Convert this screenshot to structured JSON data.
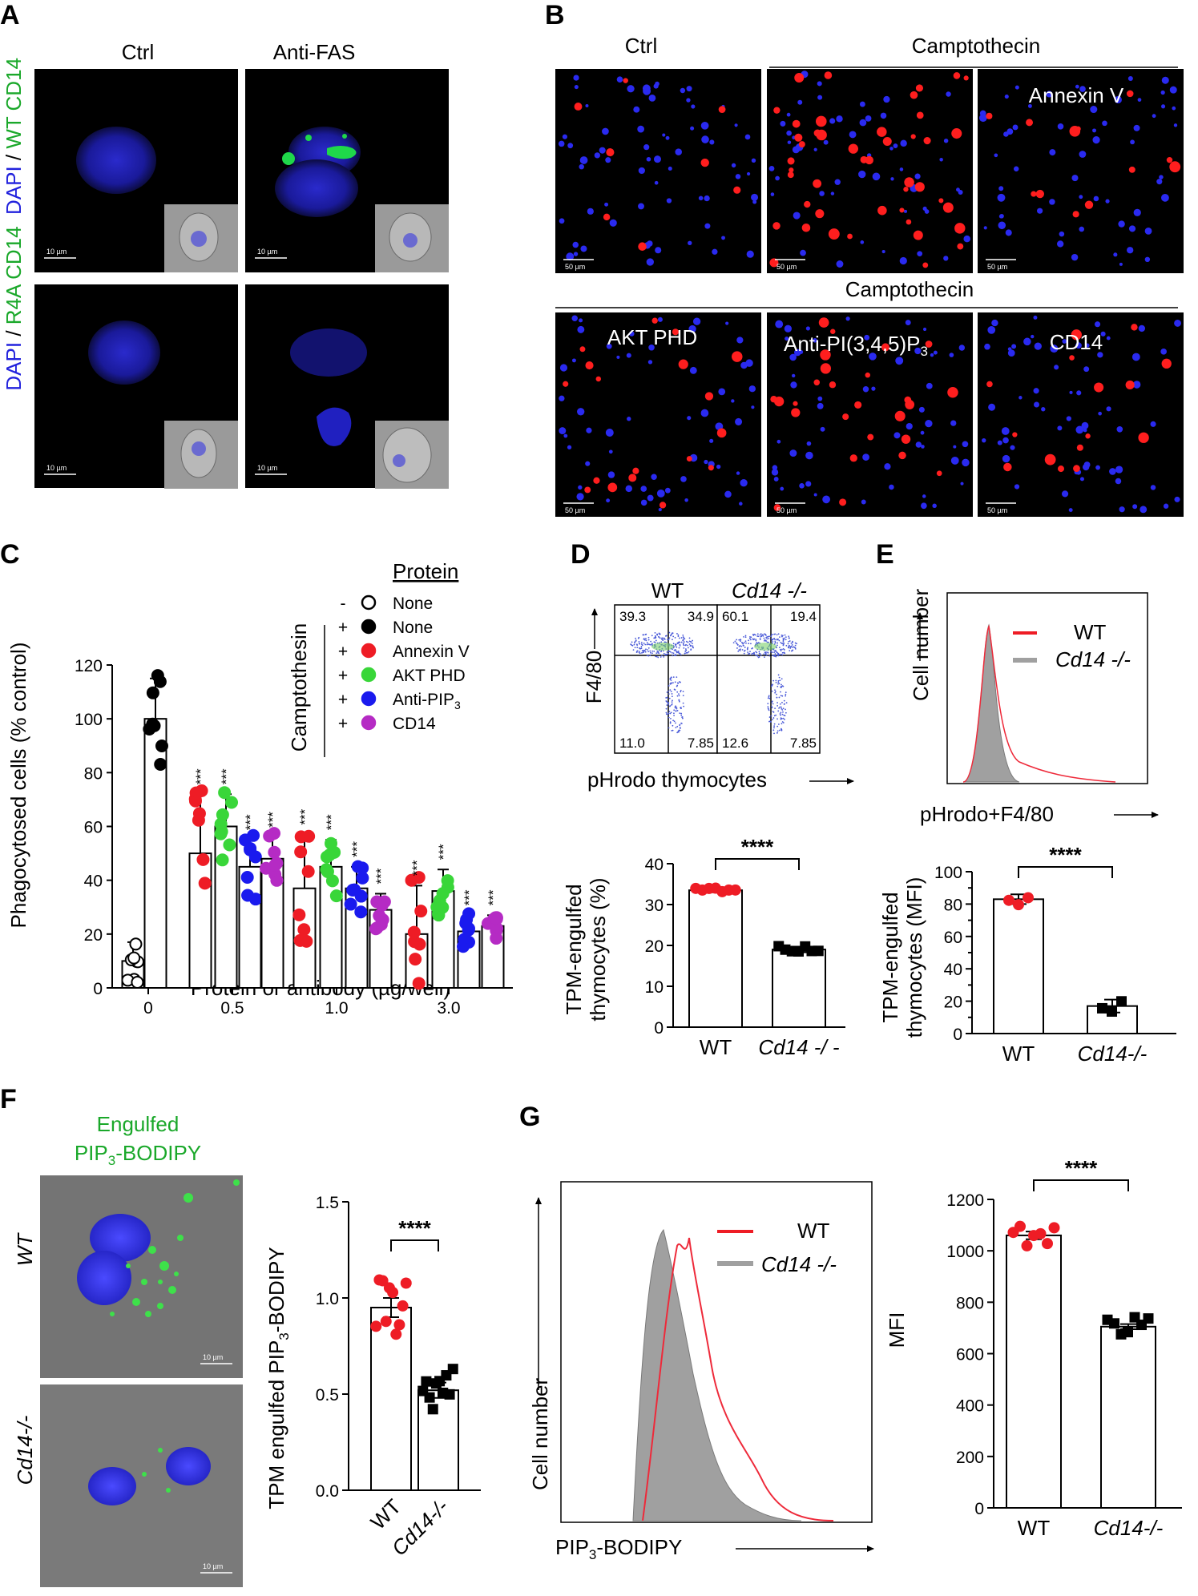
{
  "panels": {
    "A": {
      "label": "A",
      "col_labels": [
        "Ctrl",
        "Anti-FAS"
      ],
      "row1_label": {
        "dapi": "DAPI",
        "sep": " / ",
        "rest": "WT CD14"
      },
      "row2_label": {
        "dapi": "DAPI",
        "sep": " / ",
        "rest": "R4A CD14"
      },
      "scale": "10 µm"
    },
    "B": {
      "label": "B",
      "col_labels": [
        "Ctrl",
        "Camptothecin"
      ],
      "bottom_header": "Camptothecin",
      "tile_labels": [
        "Annexin V",
        "AKT PHD",
        "Anti-PI(3,4,5)P",
        "3",
        "CD14"
      ],
      "scale": "50 µm"
    },
    "C": {
      "label": "C",
      "ylabel": "Phagocytosed cells (% control)",
      "xlabel": "Protein or antibody (µg/well)",
      "legend_title": "Protein",
      "legend_group": "Camptothesin",
      "legend": [
        {
          "sign": "-",
          "name": "None",
          "color": "#ffffff"
        },
        {
          "sign": "+",
          "name": "None",
          "color": "#000000"
        },
        {
          "sign": "+",
          "name": "Annexin V",
          "color": "#ee1c25"
        },
        {
          "sign": "+",
          "name": "AKT PHD",
          "color": "#39d639"
        },
        {
          "sign": "+",
          "name": "Anti-PIP",
          "sub": "3",
          "color": "#1a1aee"
        },
        {
          "sign": "+",
          "name": "CD14",
          "color": "#b52bc4"
        }
      ],
      "sig": "***"
    },
    "D": {
      "label": "D",
      "flow_titles": [
        "WT",
        "Cd14 -/-"
      ],
      "quadrants": [
        [
          "39.3",
          "34.9",
          "11.0",
          "7.85"
        ],
        [
          "60.1",
          "19.4",
          "12.6",
          "7.85"
        ]
      ],
      "flow_ylabel": "F4/80",
      "flow_xlabel": "pHrodo thymocytes",
      "bar_ylabel1": "TPM-engulfed",
      "bar_ylabel2": "thymocytes (%)",
      "bar_x": [
        "WT",
        "Cd14 -/ -"
      ],
      "sig": "****"
    },
    "E": {
      "label": "E",
      "hist_ylabel": "Cell number",
      "hist_xlabel": "pHrodo+F4/80",
      "legend": [
        "WT",
        "Cd14 -/-"
      ],
      "bar_ylabel1": "TPM-engulfed",
      "bar_ylabel2": "thymocytes (MFI)",
      "bar_x": [
        "WT",
        "Cd14-/-"
      ],
      "sig": "****"
    },
    "F": {
      "label": "F",
      "title1": "Engulfed",
      "title2a": "PIP",
      "title2sub": "3",
      "title2b": "-BODIPY",
      "row_labels": [
        "WT",
        "Cd14-/-"
      ],
      "bar_ylabel_a": "TPM engulfed PIP",
      "bar_ylabel_sub": "3",
      "bar_ylabel_b": "-BODIPY",
      "bar_x": [
        "WT",
        "Cd14-/-"
      ],
      "sig": "****",
      "scale": "10 µm"
    },
    "G": {
      "label": "G",
      "hist_ylabel": "Cell number",
      "hist_xlabel_a": "PIP",
      "hist_xlabel_sub": "3",
      "hist_xlabel_b": "-BODIPY",
      "legend": [
        "WT",
        "Cd14 -/-"
      ],
      "bar_ylabel": "MFI",
      "bar_x": [
        "WT",
        "Cd14-/-"
      ],
      "sig": "****"
    }
  },
  "chart_data": [
    {
      "id": "C",
      "type": "bar",
      "categories": [
        "0",
        "0.5",
        "1.0",
        "3.0"
      ],
      "ylim": [
        0,
        120
      ],
      "yticks": [
        0,
        20,
        40,
        60,
        80,
        100,
        120
      ],
      "series": [
        {
          "name": "None",
          "values": [
            10,
            null,
            null,
            null
          ]
        },
        {
          "name": "None",
          "values": [
            100,
            null,
            null,
            null
          ]
        },
        {
          "name": "Annexin V",
          "values": [
            null,
            50,
            37,
            20
          ]
        },
        {
          "name": "AKT PHD",
          "values": [
            null,
            60,
            45,
            36
          ]
        },
        {
          "name": "Anti-PIP3",
          "values": [
            null,
            45,
            37,
            21
          ]
        },
        {
          "name": "CD14",
          "values": [
            null,
            48,
            29,
            23
          ]
        }
      ]
    },
    {
      "id": "D",
      "type": "bar",
      "categories": [
        "WT",
        "Cd14 -/-"
      ],
      "ylim": [
        0,
        40
      ],
      "yticks": [
        0,
        10,
        20,
        30,
        40
      ],
      "values": [
        33.5,
        19
      ]
    },
    {
      "id": "E",
      "type": "bar",
      "categories": [
        "WT",
        "Cd14-/-"
      ],
      "ylim": [
        0,
        100
      ],
      "yticks": [
        0,
        10,
        20,
        30,
        40,
        50,
        60,
        70,
        80,
        90,
        100
      ],
      "values": [
        83,
        17
      ]
    },
    {
      "id": "F",
      "type": "bar",
      "categories": [
        "WT",
        "Cd14-/-"
      ],
      "ylim": [
        0,
        1.5
      ],
      "yticks": [
        "0.0",
        "0.5",
        "1.0",
        "1.5"
      ],
      "values": [
        0.95,
        0.52
      ]
    },
    {
      "id": "G",
      "type": "bar",
      "categories": [
        "WT",
        "Cd14-/-"
      ],
      "ylim": [
        0,
        1200
      ],
      "yticks": [
        0,
        200,
        400,
        600,
        800,
        1000,
        1200
      ],
      "values": [
        1060,
        705
      ]
    }
  ]
}
